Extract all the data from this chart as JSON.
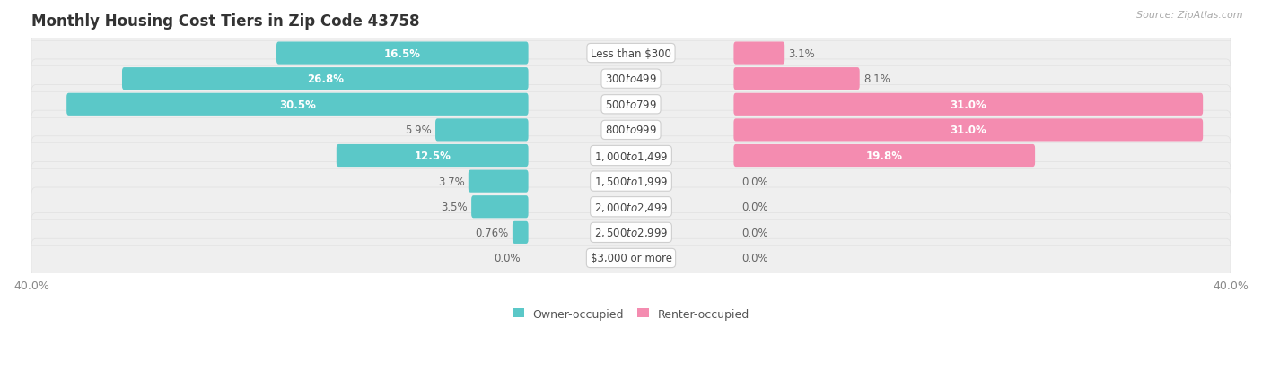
{
  "title": "Monthly Housing Cost Tiers in Zip Code 43758",
  "source": "Source: ZipAtlas.com",
  "categories": [
    "Less than $300",
    "$300 to $499",
    "$500 to $799",
    "$800 to $999",
    "$1,000 to $1,499",
    "$1,500 to $1,999",
    "$2,000 to $2,499",
    "$2,500 to $2,999",
    "$3,000 or more"
  ],
  "owner_values": [
    16.5,
    26.8,
    30.5,
    5.9,
    12.5,
    3.7,
    3.5,
    0.76,
    0.0
  ],
  "owner_labels": [
    "16.5%",
    "26.8%",
    "30.5%",
    "5.9%",
    "12.5%",
    "3.7%",
    "3.5%",
    "0.76%",
    "0.0%"
  ],
  "renter_values": [
    3.1,
    8.1,
    31.0,
    31.0,
    19.8,
    0.0,
    0.0,
    0.0,
    0.0
  ],
  "renter_labels": [
    "3.1%",
    "8.1%",
    "31.0%",
    "31.0%",
    "19.8%",
    "0.0%",
    "0.0%",
    "0.0%",
    "0.0%"
  ],
  "owner_color": "#5BC8C8",
  "renter_color": "#F48CB0",
  "owner_label": "Owner-occupied",
  "renter_label": "Renter-occupied",
  "axis_max": 40.0,
  "row_bg_color": "#efefef",
  "title_fontsize": 12,
  "cat_fontsize": 8.5,
  "val_fontsize": 8.5,
  "tick_fontsize": 9,
  "source_fontsize": 8,
  "legend_fontsize": 9
}
